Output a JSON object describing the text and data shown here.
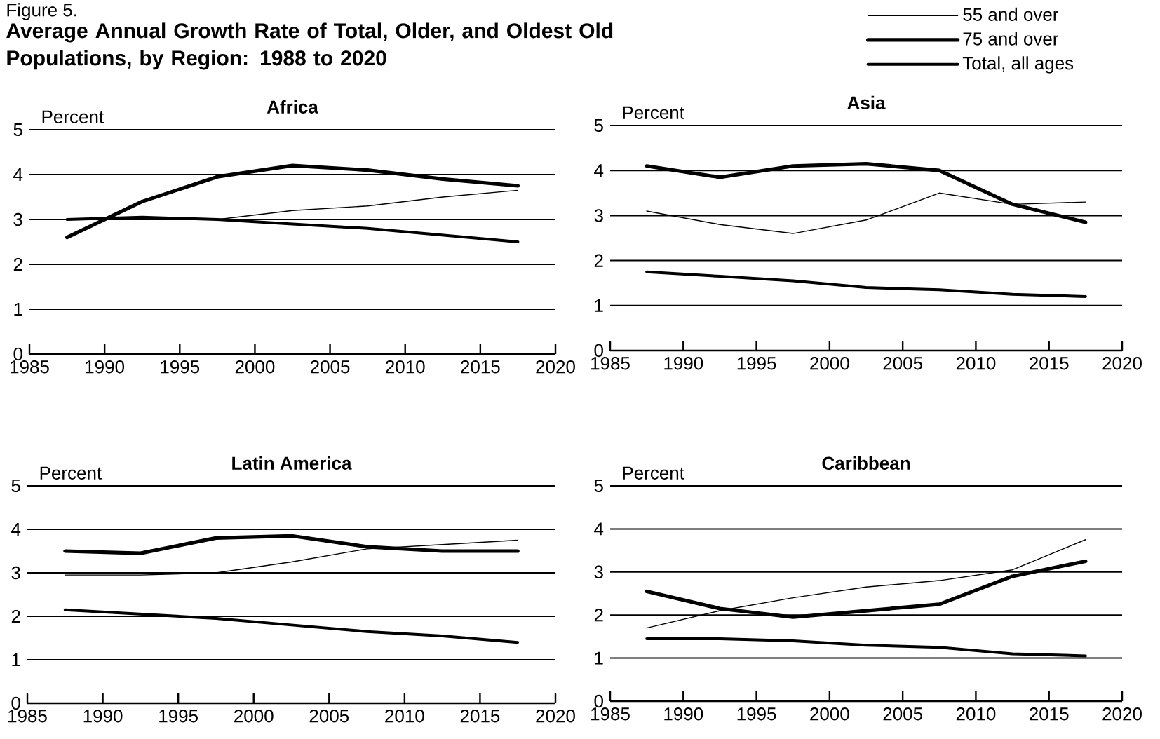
{
  "chart_data": [
    {
      "type": "other",
      "title": "Average Annual Growth Rate of Total, Older, and Oldest Old Populations, by Region:  1988 to 2020",
      "annotations": [
        "Figure 5."
      ]
    },
    {
      "type": "line",
      "title": "Africa",
      "ylabel": "Percent",
      "x": [
        1987.5,
        1992.5,
        1997.5,
        2002.5,
        2007.5,
        2012.5,
        2017.5
      ],
      "xlim": [
        1985,
        2020
      ],
      "xticks": [
        1985,
        1990,
        1995,
        2000,
        2005,
        2010,
        2015,
        2020
      ],
      "ylim": [
        0,
        5
      ],
      "yticks": [
        0,
        1,
        2,
        3,
        4,
        5
      ],
      "grid": "y",
      "series": [
        {
          "color": "#000000",
          "values": [
            3.0,
            3.0,
            3.0,
            3.2,
            3.3,
            3.5,
            3.65
          ]
        },
        {
          "color": "#000000",
          "values": [
            2.6,
            3.4,
            3.95,
            4.2,
            4.1,
            3.9,
            3.75
          ]
        },
        {
          "color": "#000000",
          "values": [
            3.0,
            3.05,
            3.0,
            2.9,
            2.8,
            2.65,
            2.5
          ]
        }
      ]
    },
    {
      "type": "line",
      "title": "Asia",
      "ylabel": "Percent",
      "x": [
        1987.5,
        1992.5,
        1997.5,
        2002.5,
        2007.5,
        2012.5,
        2017.5
      ],
      "xlim": [
        1985,
        2020
      ],
      "xticks": [
        1985,
        1990,
        1995,
        2000,
        2005,
        2010,
        2015,
        2020
      ],
      "ylim": [
        0,
        5
      ],
      "yticks": [
        0,
        1,
        2,
        3,
        4,
        5
      ],
      "grid": "y",
      "legend": "top right",
      "series": [
        {
          "name": "55 and over",
          "color": "#000000",
          "values": [
            3.1,
            2.8,
            2.6,
            2.9,
            3.5,
            3.25,
            3.3
          ]
        },
        {
          "name": "75 and over",
          "color": "#000000",
          "values": [
            4.1,
            3.85,
            4.1,
            4.15,
            4.0,
            3.25,
            2.85
          ]
        },
        {
          "name": "Total, all ages",
          "color": "#000000",
          "values": [
            1.75,
            1.65,
            1.55,
            1.4,
            1.35,
            1.25,
            1.2
          ]
        }
      ]
    },
    {
      "type": "line",
      "title": "Latin America",
      "ylabel": "Percent",
      "x": [
        1987.5,
        1992.5,
        1997.5,
        2002.5,
        2007.5,
        2012.5,
        2017.5
      ],
      "xlim": [
        1985,
        2020
      ],
      "xticks": [
        1985,
        1990,
        1995,
        2000,
        2005,
        2010,
        2015,
        2020
      ],
      "ylim": [
        0,
        5
      ],
      "yticks": [
        0,
        1,
        2,
        3,
        4,
        5
      ],
      "grid": "y",
      "series": [
        {
          "color": "#000000",
          "values": [
            2.95,
            2.95,
            3.0,
            3.25,
            3.55,
            3.65,
            3.75
          ]
        },
        {
          "color": "#000000",
          "values": [
            3.5,
            3.45,
            3.8,
            3.85,
            3.6,
            3.5,
            3.5
          ]
        },
        {
          "color": "#000000",
          "values": [
            2.15,
            2.05,
            1.95,
            1.8,
            1.65,
            1.55,
            1.4
          ]
        }
      ]
    },
    {
      "type": "line",
      "title": "Caribbean",
      "ylabel": "Percent",
      "x": [
        1987.5,
        1992.5,
        1997.5,
        2002.5,
        2007.5,
        2012.5,
        2017.5
      ],
      "xlim": [
        1985,
        2020
      ],
      "xticks": [
        1985,
        1990,
        1995,
        2000,
        2005,
        2010,
        2015,
        2020
      ],
      "ylim": [
        0,
        5
      ],
      "yticks": [
        0,
        1,
        2,
        3,
        4,
        5
      ],
      "grid": "y",
      "series": [
        {
          "color": "#000000",
          "values": [
            1.7,
            2.1,
            2.4,
            2.65,
            2.8,
            3.05,
            3.75
          ]
        },
        {
          "color": "#000000",
          "values": [
            2.55,
            2.15,
            1.95,
            2.1,
            2.25,
            2.9,
            3.25
          ]
        },
        {
          "color": "#000000",
          "values": [
            1.45,
            1.45,
            1.4,
            1.3,
            1.25,
            1.1,
            1.05
          ]
        }
      ]
    }
  ]
}
